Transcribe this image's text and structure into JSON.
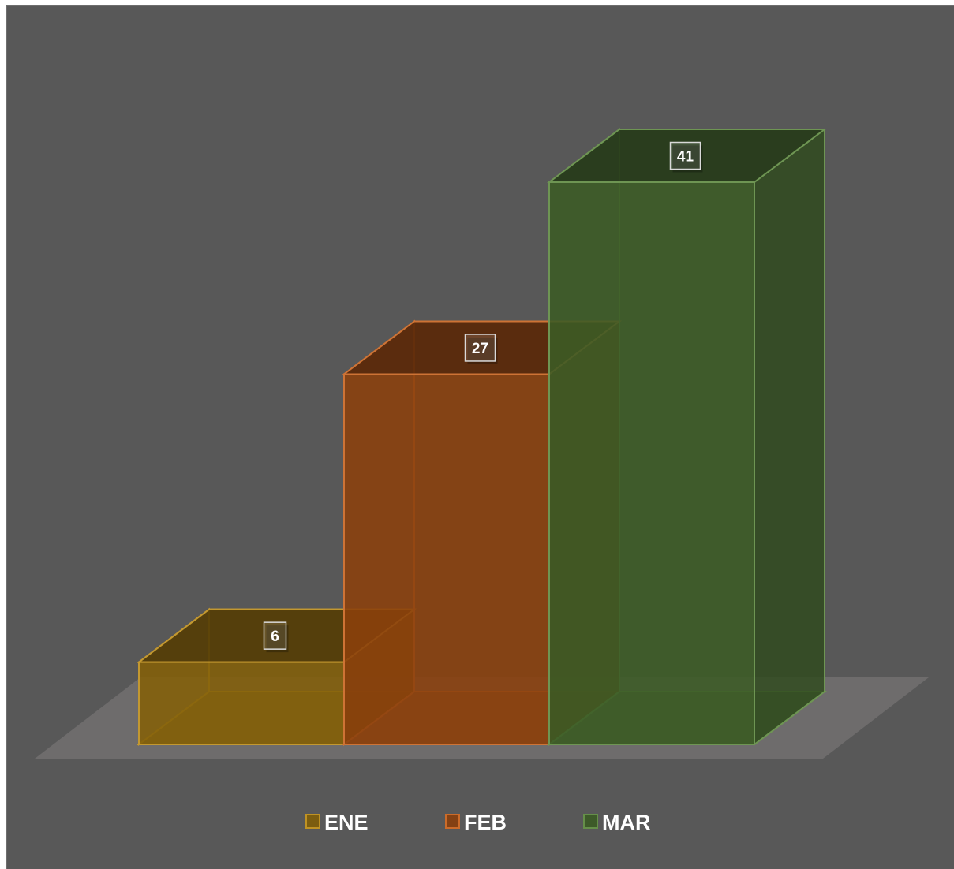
{
  "chart_data": {
    "type": "bar",
    "categories": [
      "ENE",
      "FEB",
      "MAR"
    ],
    "values": [
      6,
      27,
      41
    ],
    "series": [
      {
        "name": "ENE",
        "value": 6,
        "color": "#b8860b"
      },
      {
        "name": "FEB",
        "value": 27,
        "color": "#c55a11"
      },
      {
        "name": "MAR",
        "value": 41,
        "color": "#548235"
      }
    ],
    "title": "",
    "xlabel": "",
    "ylabel": "",
    "ylim": [
      0,
      41
    ],
    "grid": false,
    "legend_position": "bottom",
    "style": "3d-transparent-columns"
  },
  "colors": {
    "panel_background": "#585858",
    "floor": "#6e6c6c",
    "label_text": "#ffffff"
  }
}
